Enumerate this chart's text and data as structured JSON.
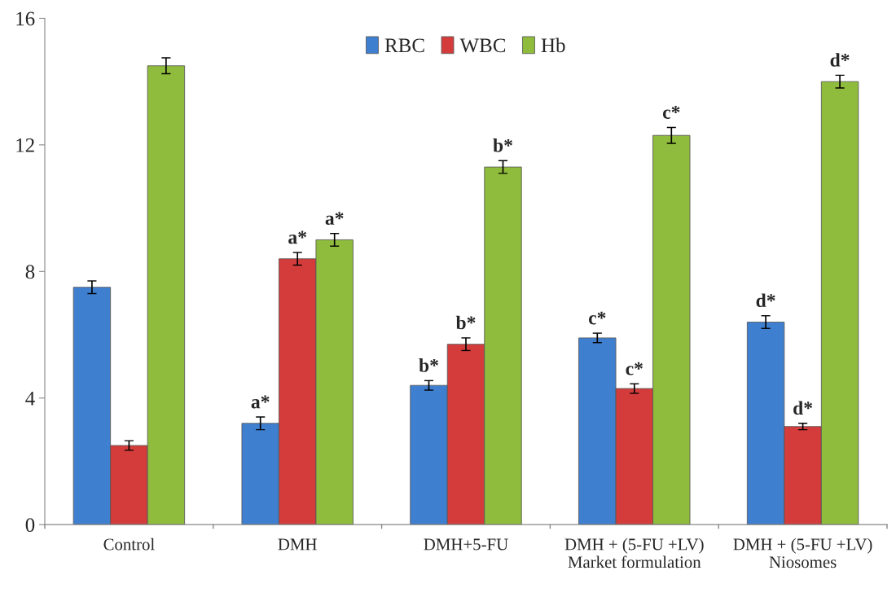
{
  "chart_data": {
    "type": "bar",
    "categories": [
      "Control",
      "DMH",
      "DMH+5-FU",
      "DMH + (5-FU +LV)\nMarket formulation",
      "DMH + (5-FU +LV)\nNiosomes"
    ],
    "series": [
      {
        "name": "RBC",
        "color": "#3f7fd0",
        "values": [
          7.5,
          3.2,
          4.4,
          5.9,
          6.4
        ],
        "errors": [
          0.2,
          0.2,
          0.15,
          0.15,
          0.2
        ],
        "value_labels": [
          null,
          "a*",
          "b*",
          "c*",
          "d*"
        ]
      },
      {
        "name": "WBC",
        "color": "#d43c3c",
        "values": [
          2.5,
          8.4,
          5.7,
          4.3,
          3.1
        ],
        "errors": [
          0.15,
          0.2,
          0.2,
          0.15,
          0.1
        ],
        "value_labels": [
          null,
          "a*",
          "b*",
          "c*",
          "d*"
        ]
      },
      {
        "name": "Hb",
        "color": "#8fbc3c",
        "values": [
          14.5,
          9.0,
          11.3,
          12.3,
          14.0
        ],
        "errors": [
          0.25,
          0.2,
          0.2,
          0.25,
          0.2
        ],
        "value_labels": [
          null,
          "a*",
          "b*",
          "c*",
          "d*"
        ]
      }
    ],
    "ylim": [
      0,
      16
    ],
    "yticks": [
      0,
      4,
      8,
      12,
      16
    ],
    "grid": false,
    "legend": "top"
  }
}
